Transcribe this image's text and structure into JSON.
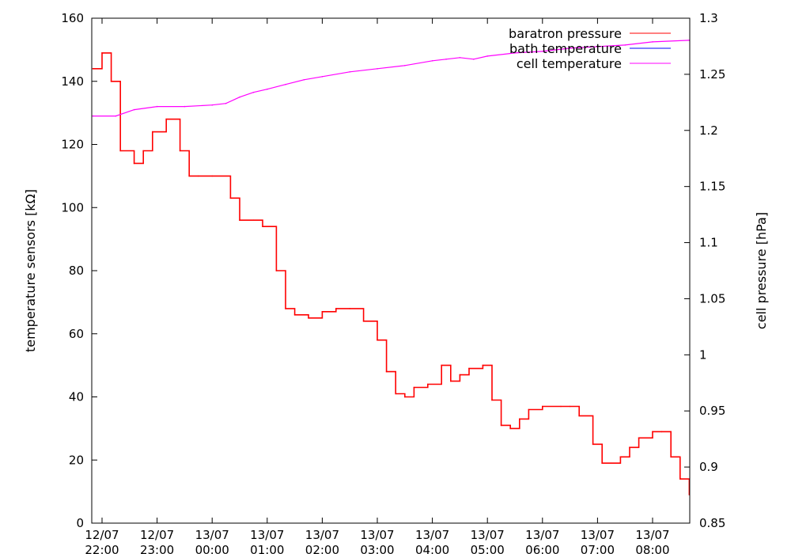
{
  "chart_data": {
    "type": "line",
    "title": "",
    "xlabel": "",
    "ylabel_left": "temperature sensors [kΩ]",
    "ylabel_right": "cell pressure [hPa]",
    "x_ticks": [
      {
        "date": "12/07",
        "time": "22:00"
      },
      {
        "date": "12/07",
        "time": "23:00"
      },
      {
        "date": "13/07",
        "time": "00:00"
      },
      {
        "date": "13/07",
        "time": "01:00"
      },
      {
        "date": "13/07",
        "time": "02:00"
      },
      {
        "date": "13/07",
        "time": "03:00"
      },
      {
        "date": "13/07",
        "time": "04:00"
      },
      {
        "date": "13/07",
        "time": "05:00"
      },
      {
        "date": "13/07",
        "time": "06:00"
      },
      {
        "date": "13/07",
        "time": "07:00"
      },
      {
        "date": "13/07",
        "time": "08:00"
      }
    ],
    "y_left": {
      "min": 0,
      "max": 160,
      "ticks": [
        "0",
        "20",
        "40",
        "60",
        "80",
        "100",
        "120",
        "140",
        "160"
      ]
    },
    "y_right": {
      "min": 0.85,
      "max": 1.3,
      "ticks": [
        "0.85",
        "0.9",
        "0.95",
        "1",
        "1.05",
        "1.1",
        "1.15",
        "1.2",
        "1.25",
        "1.3"
      ]
    },
    "legend_position": "top-right",
    "series": [
      {
        "name": "baratron pressure",
        "axis": "left",
        "color": "#ff0000",
        "style": "step",
        "x": [
          "12/07 21:50",
          "12/07 22:00",
          "12/07 22:10",
          "12/07 22:20",
          "12/07 22:35",
          "12/07 22:45",
          "12/07 22:55",
          "12/07 23:10",
          "12/07 23:25",
          "12/07 23:35",
          "12/07 23:45",
          "13/07 00:00",
          "13/07 00:20",
          "13/07 00:30",
          "13/07 00:45",
          "13/07 00:55",
          "13/07 01:10",
          "13/07 01:20",
          "13/07 01:30",
          "13/07 01:45",
          "13/07 02:00",
          "13/07 02:15",
          "13/07 02:30",
          "13/07 02:45",
          "13/07 03:00",
          "13/07 03:10",
          "13/07 03:20",
          "13/07 03:30",
          "13/07 03:40",
          "13/07 03:55",
          "13/07 04:10",
          "13/07 04:20",
          "13/07 04:30",
          "13/07 04:40",
          "13/07 04:55",
          "13/07 05:05",
          "13/07 05:15",
          "13/07 05:25",
          "13/07 05:35",
          "13/07 05:45",
          "13/07 06:00",
          "13/07 06:20",
          "13/07 06:30",
          "13/07 06:40",
          "13/07 06:55",
          "13/07 07:05",
          "13/07 07:15",
          "13/07 07:25",
          "13/07 07:35",
          "13/07 07:45",
          "13/07 08:00",
          "13/07 08:10",
          "13/07 08:20",
          "13/07 08:30",
          "13/07 08:40"
        ],
        "values": [
          144,
          149,
          140,
          118,
          114,
          118,
          124,
          128,
          118,
          110,
          110,
          110,
          103,
          96,
          96,
          94,
          80,
          68,
          66,
          65,
          67,
          68,
          68,
          64,
          58,
          48,
          41,
          40,
          43,
          44,
          50,
          45,
          47,
          49,
          50,
          39,
          31,
          30,
          33,
          36,
          37,
          37,
          37,
          34,
          25,
          19,
          19,
          21,
          24,
          27,
          29,
          29,
          21,
          14,
          9
        ]
      },
      {
        "name": "bath temperature",
        "axis": "left",
        "color": "#0000ff",
        "style": "line",
        "x": [],
        "values": []
      },
      {
        "name": "cell temperature",
        "axis": "left",
        "color": "#ff00ff",
        "style": "line",
        "x": [
          "12/07 21:50",
          "12/07 22:15",
          "12/07 22:35",
          "12/07 23:00",
          "12/07 23:30",
          "13/07 00:00",
          "13/07 00:15",
          "13/07 00:30",
          "13/07 00:45",
          "13/07 01:00",
          "13/07 01:20",
          "13/07 01:40",
          "13/07 02:00",
          "13/07 02:30",
          "13/07 03:00",
          "13/07 03:30",
          "13/07 04:00",
          "13/07 04:15",
          "13/07 04:30",
          "13/07 04:45",
          "13/07 05:00",
          "13/07 05:30",
          "13/07 06:00",
          "13/07 06:30",
          "13/07 07:00",
          "13/07 07:30",
          "13/07 08:00",
          "13/07 08:40"
        ],
        "values": [
          129,
          129,
          131,
          132,
          132,
          132.5,
          133,
          135,
          136.5,
          137.5,
          139,
          140.5,
          141.5,
          143,
          144,
          145,
          146.5,
          147,
          147.5,
          147,
          148,
          149,
          149.5,
          150.5,
          151,
          151.5,
          152.5,
          153
        ]
      }
    ]
  }
}
